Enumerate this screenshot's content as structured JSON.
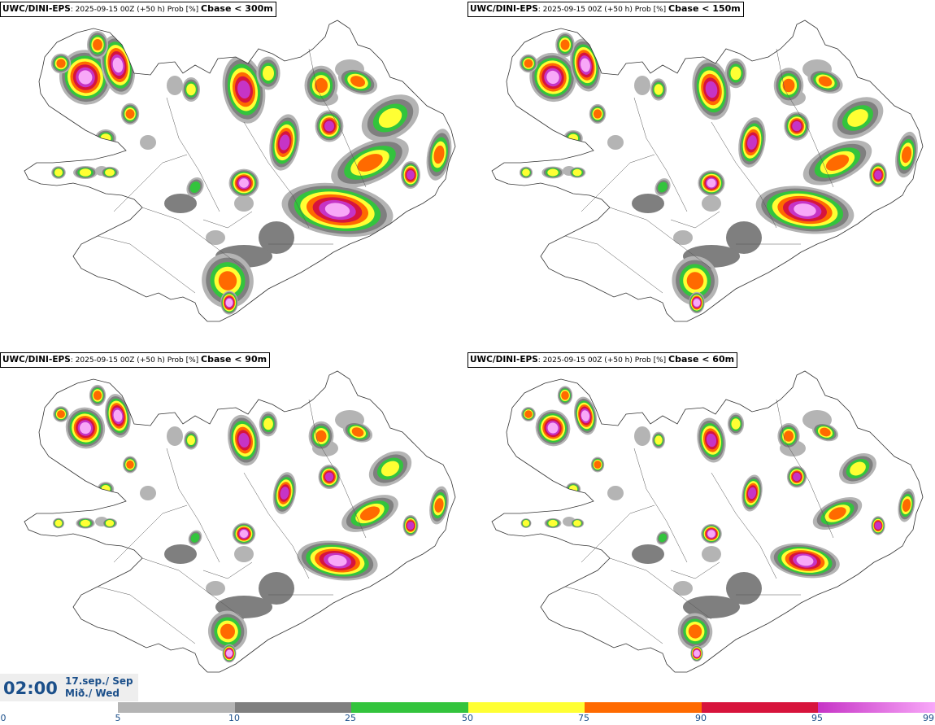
{
  "panels": [
    {
      "model": "UWC/DINI-EPS",
      "run": ": 2025-09-15 00Z (+50 h) Prob [%] ",
      "threshold": "Cbase < 300m"
    },
    {
      "model": "UWC/DINI-EPS",
      "run": ": 2025-09-15 00Z (+50 h) Prob [%] ",
      "threshold": "Cbase < 150m"
    },
    {
      "model": "UWC/DINI-EPS",
      "run": ": 2025-09-15 00Z (+50 h) Prob [%] ",
      "threshold": "Cbase < 90m"
    },
    {
      "model": "UWC/DINI-EPS",
      "run": ": 2025-09-15 00Z (+50 h) Prob [%] ",
      "threshold": "Cbase < 60m"
    }
  ],
  "valid_time": {
    "time": "02:00",
    "date": "17.sep./ Sep",
    "weekday": "Mið./ Wed"
  },
  "colorbar": {
    "ticks": [
      "0",
      "5",
      "10",
      "25",
      "50",
      "75",
      "90",
      "95",
      "99"
    ],
    "bins": [
      {
        "from": 5,
        "to": 10,
        "color": "#b4b4b4"
      },
      {
        "from": 10,
        "to": 25,
        "color": "#7f7f7f"
      },
      {
        "from": 25,
        "to": 50,
        "color": "#33c43d"
      },
      {
        "from": 50,
        "to": 75,
        "color": "#ffff33"
      },
      {
        "from": 75,
        "to": 90,
        "color": "#ff6a00"
      },
      {
        "from": 90,
        "to": 95,
        "color": "#d7143c"
      },
      {
        "from": 95,
        "to": 99,
        "color": "#c634c6",
        "to_color": "#f8a8f8"
      }
    ]
  },
  "map": {
    "region": "Iceland",
    "coastline_color": "#333333",
    "land_fill": "#ffffff"
  }
}
